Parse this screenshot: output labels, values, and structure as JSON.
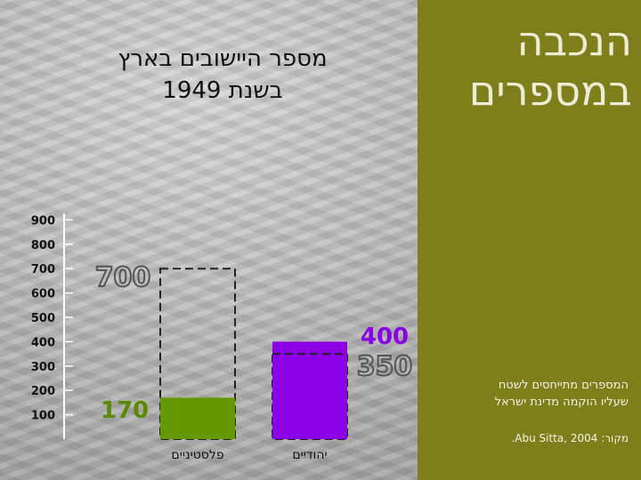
{
  "header": {
    "title_line1": "הנכבה",
    "title_line2": "במספרים",
    "subtitle_line1": "מספר היישובים בארץ",
    "subtitle_line2": "בשנת 1949"
  },
  "note": {
    "line1": "המספרים מתייחסים לשטח",
    "line2": "שעליו הוקמה מדינת ישראל",
    "source": "מקור: Abu Sitta, 2004."
  },
  "colors": {
    "panel": "#7e7e1a",
    "palestinian_bar": "#669900",
    "jewish_bar": "#8c00e6",
    "label_green": "#5a8a00",
    "label_purple": "#8c00e6"
  },
  "chart_data": {
    "type": "bar",
    "title": "מספר היישובים בארץ בשנת 1949",
    "categories": [
      "פלסטיניים",
      "יהודיים"
    ],
    "series": [
      {
        "values": [
          170,
          400
        ]
      },
      {
        "values": [
          700,
          350
        ]
      }
    ],
    "data_labels": [
      "170",
      "400",
      "700",
      "350"
    ],
    "y_ticks": [
      100,
      200,
      300,
      400,
      500,
      600,
      700,
      800,
      900
    ],
    "ylim": [
      0,
      900
    ],
    "grid": false,
    "legend": "none"
  }
}
